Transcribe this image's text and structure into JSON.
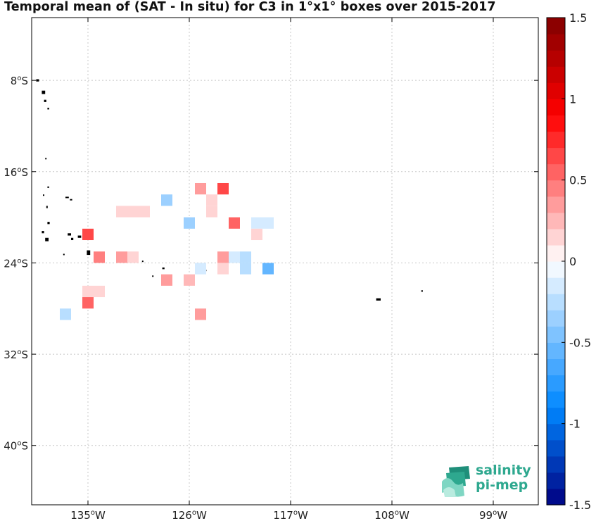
{
  "title": "Temporal mean of (SAT - In situ) for C3 in 1°x1° boxes over 2015-2017",
  "map": {
    "lon_range": [
      -140,
      -95
    ],
    "lat_range": [
      -45.2,
      -2.5
    ],
    "lon_ticks": [
      {
        "value": -135,
        "label": "135°W"
      },
      {
        "value": -126,
        "label": "126°W"
      },
      {
        "value": -117,
        "label": "117°W"
      },
      {
        "value": -108,
        "label": "108°W"
      },
      {
        "value": -99,
        "label": "99°W"
      }
    ],
    "lat_ticks": [
      {
        "value": -8,
        "label": "8°S"
      },
      {
        "value": -16,
        "label": "16°S"
      },
      {
        "value": -24,
        "label": "24°S"
      },
      {
        "value": -32,
        "label": "32°S"
      },
      {
        "value": -40,
        "label": "40°S"
      }
    ],
    "grid": true,
    "land_color": "#000000"
  },
  "colorbar": {
    "range": [
      -1.5,
      1.5
    ],
    "ticks": [
      {
        "value": 1.5,
        "label": "1.5"
      },
      {
        "value": 1,
        "label": "1"
      },
      {
        "value": 0.5,
        "label": "0.5"
      },
      {
        "value": 0,
        "label": "0"
      },
      {
        "value": -0.5,
        "label": "-0.5"
      },
      {
        "value": -1,
        "label": "-1"
      },
      {
        "value": -1.5,
        "label": "-1.5"
      }
    ],
    "levels": 30,
    "colormap": "blue-white-red"
  },
  "chart_data": {
    "type": "heatmap",
    "cell_size_deg": 1,
    "cells": [
      {
        "lon": -135,
        "lat": -21.5,
        "value": 0.65
      },
      {
        "lon": -134,
        "lat": -23.5,
        "value": 0.4
      },
      {
        "lon": -132,
        "lat": -23.5,
        "value": 0.3
      },
      {
        "lon": -131,
        "lat": -23.5,
        "value": 0.15
      },
      {
        "lon": -132,
        "lat": -19.5,
        "value": 0.12
      },
      {
        "lon": -131,
        "lat": -19.5,
        "value": 0.12
      },
      {
        "lon": -130,
        "lat": -19.5,
        "value": 0.12
      },
      {
        "lon": -128,
        "lat": -18.5,
        "value": -0.35
      },
      {
        "lon": -126,
        "lat": -20.5,
        "value": -0.4
      },
      {
        "lon": -125,
        "lat": -17.5,
        "value": 0.3
      },
      {
        "lon": -124,
        "lat": -18.5,
        "value": 0.12
      },
      {
        "lon": -124,
        "lat": -19.5,
        "value": 0.12
      },
      {
        "lon": -123,
        "lat": -17.5,
        "value": 0.6
      },
      {
        "lon": -122,
        "lat": -20.5,
        "value": 0.5
      },
      {
        "lon": -120,
        "lat": -20.5,
        "value": -0.1
      },
      {
        "lon": -119,
        "lat": -20.5,
        "value": -0.1
      },
      {
        "lon": -120,
        "lat": -21.5,
        "value": 0.15
      },
      {
        "lon": -123,
        "lat": -23.5,
        "value": 0.3
      },
      {
        "lon": -122,
        "lat": -23.5,
        "value": -0.1
      },
      {
        "lon": -123,
        "lat": -24.5,
        "value": 0.12
      },
      {
        "lon": -125,
        "lat": -24.5,
        "value": -0.1
      },
      {
        "lon": -121,
        "lat": -23.5,
        "value": -0.25
      },
      {
        "lon": -121,
        "lat": -24.5,
        "value": -0.25
      },
      {
        "lon": -119,
        "lat": -24.5,
        "value": -0.55
      },
      {
        "lon": -128,
        "lat": -25.5,
        "value": 0.3
      },
      {
        "lon": -126,
        "lat": -25.5,
        "value": 0.2
      },
      {
        "lon": -135,
        "lat": -26.5,
        "value": 0.12
      },
      {
        "lon": -134,
        "lat": -26.5,
        "value": 0.12
      },
      {
        "lon": -135,
        "lat": -27.5,
        "value": 0.55
      },
      {
        "lon": -137,
        "lat": -28.5,
        "value": -0.25
      },
      {
        "lon": -125,
        "lat": -28.5,
        "value": 0.3
      }
    ],
    "land": [
      {
        "lon": -139.6,
        "lat": -7.9,
        "w": 0.25,
        "h": 0.2
      },
      {
        "lon": -139.1,
        "lat": -8.9,
        "w": 0.3,
        "h": 0.3
      },
      {
        "lon": -138.9,
        "lat": -9.7,
        "w": 0.2,
        "h": 0.2
      },
      {
        "lon": -138.6,
        "lat": -10.4,
        "w": 0.15,
        "h": 0.15
      },
      {
        "lon": -138.8,
        "lat": -14.8,
        "w": 0.1,
        "h": 0.1
      },
      {
        "lon": -138.6,
        "lat": -17.3,
        "w": 0.15,
        "h": 0.1
      },
      {
        "lon": -139.0,
        "lat": -18.0,
        "w": 0.1,
        "h": 0.1
      },
      {
        "lon": -138.7,
        "lat": -19.0,
        "w": 0.1,
        "h": 0.2
      },
      {
        "lon": -137.0,
        "lat": -18.2,
        "w": 0.3,
        "h": 0.1
      },
      {
        "lon": -136.6,
        "lat": -18.4,
        "w": 0.2,
        "h": 0.1
      },
      {
        "lon": -138.6,
        "lat": -20.4,
        "w": 0.2,
        "h": 0.2
      },
      {
        "lon": -139.1,
        "lat": -21.2,
        "w": 0.2,
        "h": 0.2
      },
      {
        "lon": -138.8,
        "lat": -21.8,
        "w": 0.3,
        "h": 0.3
      },
      {
        "lon": -136.8,
        "lat": -21.4,
        "w": 0.3,
        "h": 0.2
      },
      {
        "lon": -136.5,
        "lat": -21.8,
        "w": 0.2,
        "h": 0.2
      },
      {
        "lon": -135.9,
        "lat": -21.6,
        "w": 0.3,
        "h": 0.2
      },
      {
        "lon": -135.1,
        "lat": -22.9,
        "w": 0.3,
        "h": 0.4
      },
      {
        "lon": -137.2,
        "lat": -23.2,
        "w": 0.1,
        "h": 0.1
      },
      {
        "lon": -130.2,
        "lat": -23.8,
        "w": 0.1,
        "h": 0.1
      },
      {
        "lon": -128.4,
        "lat": -24.4,
        "w": 0.2,
        "h": 0.15
      },
      {
        "lon": -129.3,
        "lat": -25.1,
        "w": 0.1,
        "h": 0.1
      },
      {
        "lon": -124.6,
        "lat": -24.6,
        "w": 0.1,
        "h": 0.1
      },
      {
        "lon": -109.4,
        "lat": -27.1,
        "w": 0.4,
        "h": 0.2
      },
      {
        "lon": -105.4,
        "lat": -26.4,
        "w": 0.15,
        "h": 0.1
      }
    ]
  },
  "logo": {
    "line1": "salinity",
    "line2": "pi-mep"
  }
}
